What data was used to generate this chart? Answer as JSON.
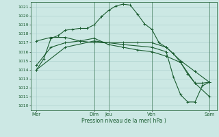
{
  "xlabel": "Pression niveau de la mer( hPa )",
  "bg_color": "#cce8e4",
  "grid_color": "#a8ccca",
  "line_color": "#1a5c30",
  "tick_label_color": "#1a5c30",
  "spine_color": "#1a5c30",
  "ylim": [
    1009.5,
    1021.5
  ],
  "yticks": [
    1010,
    1011,
    1012,
    1013,
    1014,
    1015,
    1016,
    1017,
    1018,
    1019,
    1020,
    1021
  ],
  "xlim": [
    -0.3,
    25.5
  ],
  "x_ticks_positions": [
    0.5,
    8.5,
    10.5,
    16.5,
    24.5
  ],
  "x_tick_labels": [
    "Mer",
    "Dim",
    "Jeu",
    "Ven",
    "Sam"
  ],
  "vlines_x": [
    8.5,
    10.5,
    16.5,
    24.5
  ],
  "series1_x": [
    0.5,
    1.5,
    2.5,
    3.5,
    4.5,
    5.5,
    6.5,
    7.5,
    8.5,
    9.5,
    10.5,
    11.5,
    12.5,
    13.5,
    14.5,
    15.5,
    16.5,
    17.5,
    18.5,
    19.5,
    20.5,
    21.5,
    22.5,
    23.5,
    24.5
  ],
  "series1_y": [
    1014.0,
    1015.2,
    1017.5,
    1017.8,
    1018.4,
    1018.5,
    1018.6,
    1018.6,
    1019.0,
    1019.9,
    1020.6,
    1021.1,
    1021.3,
    1021.2,
    1020.2,
    1019.1,
    1018.5,
    1017.0,
    1016.5,
    1015.8,
    1014.8,
    1013.5,
    1012.5,
    1012.5,
    1012.6
  ],
  "series2_x": [
    0.5,
    2.5,
    4.5,
    6.5,
    8.5,
    10.5,
    12.5,
    14.5,
    16.5,
    18.5,
    20.5,
    22.5,
    24.5
  ],
  "series2_y": [
    1017.2,
    1017.6,
    1017.6,
    1017.2,
    1017.0,
    1017.0,
    1017.0,
    1017.0,
    1017.0,
    1016.5,
    1015.0,
    1013.8,
    1012.6
  ],
  "series3_x": [
    0.5,
    2.5,
    4.5,
    6.5,
    8.5,
    10.5,
    12.5,
    14.5,
    16.5,
    18.5,
    20.5,
    22.5,
    24.5
  ],
  "series3_y": [
    1014.5,
    1016.5,
    1017.0,
    1017.2,
    1017.5,
    1016.8,
    1016.5,
    1016.2,
    1016.0,
    1015.5,
    1014.8,
    1012.5,
    1011.0
  ],
  "series4_x": [
    0.5,
    4.5,
    8.5,
    12.5,
    16.5,
    18.5,
    19.5,
    20.5,
    21.5,
    22.5,
    23.5,
    24.5
  ],
  "series4_y": [
    1014.0,
    1016.5,
    1017.2,
    1016.8,
    1016.5,
    1016.0,
    1013.2,
    1011.2,
    1010.4,
    1010.4,
    1012.2,
    1012.6
  ],
  "figsize": [
    3.2,
    2.0
  ],
  "dpi": 100,
  "lw": 0.8,
  "ms": 2.5,
  "ytick_fontsize": 4.5,
  "xtick_fontsize": 5.0,
  "xlabel_fontsize": 5.5
}
